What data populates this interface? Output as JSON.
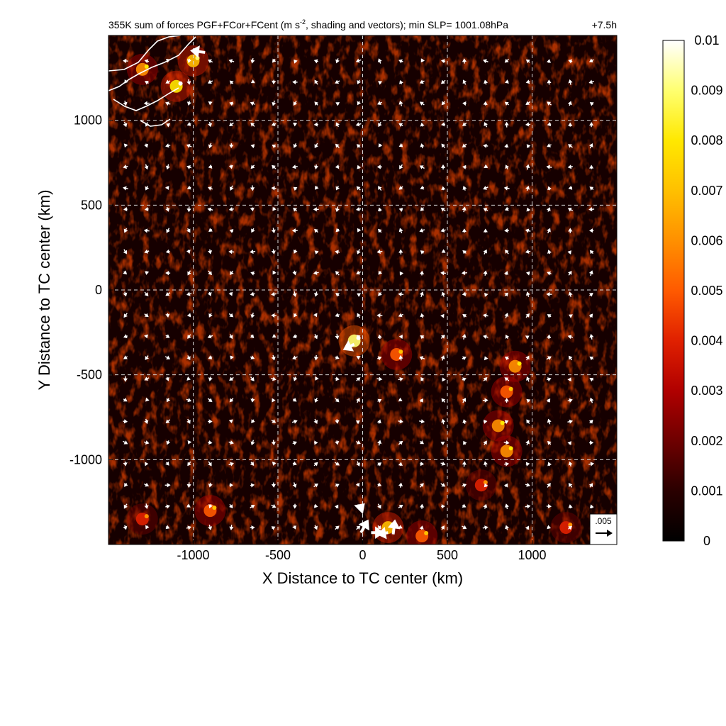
{
  "chart_data": {
    "type": "heatmap",
    "title_main": "355K sum of forces PGF+FCor+FCent (m s",
    "title_sup": "-2",
    "title_rest": ", shading and vectors); min SLP= 1001.08hPa",
    "time_label": "+7.5h",
    "xlabel": "X Distance to TC center (km)",
    "ylabel": "Y Distance to TC center (km)",
    "xlim": [
      -1500,
      1500
    ],
    "ylim": [
      -1500,
      1500
    ],
    "xticks": [
      -1000,
      -500,
      0,
      500,
      1000
    ],
    "yticks": [
      -1000,
      -500,
      0,
      500,
      1000
    ],
    "xtick_labels": [
      "-1000",
      "-500",
      "0",
      "500",
      "1000"
    ],
    "ytick_labels": [
      "-1000",
      "-500",
      "0",
      "500",
      "1000"
    ],
    "grid": true,
    "colorbar": {
      "min": 0,
      "max": 0.01,
      "tick_values": [
        0,
        0.001,
        0.002,
        0.003,
        0.004,
        0.005,
        0.006,
        0.007,
        0.008,
        0.009,
        0.01
      ],
      "tick_labels": [
        "0",
        "0.001",
        "0.002",
        "0.003",
        "0.004",
        "0.005",
        "0.006",
        "0.007",
        "0.008",
        "0.009",
        "0.01"
      ],
      "colormap": [
        "#000000",
        "#2a0000",
        "#6e0000",
        "#b00000",
        "#e02000",
        "#ff5a00",
        "#ff9000",
        "#ffc000",
        "#ffe800",
        "#ffff70",
        "#ffffff"
      ]
    },
    "reference_vector": {
      "label": ".005",
      "value": 0.005
    },
    "hotspots": [
      {
        "x": -1300,
        "y": 1300,
        "intensity": 0.006
      },
      {
        "x": -1100,
        "y": 1200,
        "intensity": 0.008
      },
      {
        "x": -1000,
        "y": 1350,
        "intensity": 0.007
      },
      {
        "x": -50,
        "y": -300,
        "intensity": 0.009
      },
      {
        "x": 200,
        "y": -380,
        "intensity": 0.005
      },
      {
        "x": 900,
        "y": -450,
        "intensity": 0.006
      },
      {
        "x": 850,
        "y": -600,
        "intensity": 0.005
      },
      {
        "x": 800,
        "y": -800,
        "intensity": 0.006
      },
      {
        "x": 850,
        "y": -950,
        "intensity": 0.006
      },
      {
        "x": 700,
        "y": -1150,
        "intensity": 0.004
      },
      {
        "x": -900,
        "y": -1300,
        "intensity": 0.005
      },
      {
        "x": -1300,
        "y": -1350,
        "intensity": 0.004
      },
      {
        "x": 150,
        "y": -1400,
        "intensity": 0.007
      },
      {
        "x": 350,
        "y": -1450,
        "intensity": 0.005
      },
      {
        "x": 1200,
        "y": -1400,
        "intensity": 0.004
      }
    ],
    "large_vectors": [
      {
        "x": -930,
        "y": 1400,
        "u": -0.008,
        "v": 0.001
      },
      {
        "x": -50,
        "y": -320,
        "u": -0.006,
        "v": -0.003
      },
      {
        "x": -10,
        "y": -1430,
        "u": 0.004,
        "v": 0.007
      },
      {
        "x": 50,
        "y": -1430,
        "u": 0.007,
        "v": 0.0
      },
      {
        "x": 180,
        "y": -1440,
        "u": 0.001,
        "v": 0.008
      },
      {
        "x": -20,
        "y": -1290,
        "u": 0.003,
        "v": 0.003
      },
      {
        "x": 150,
        "y": -1430,
        "u": -0.006,
        "v": -0.001
      }
    ]
  },
  "colors": {
    "background": "#ffffff",
    "field_dark": "#160000",
    "vector": "#ffffff",
    "grid": "#d8d8d8",
    "coastline": "#ffffff"
  }
}
